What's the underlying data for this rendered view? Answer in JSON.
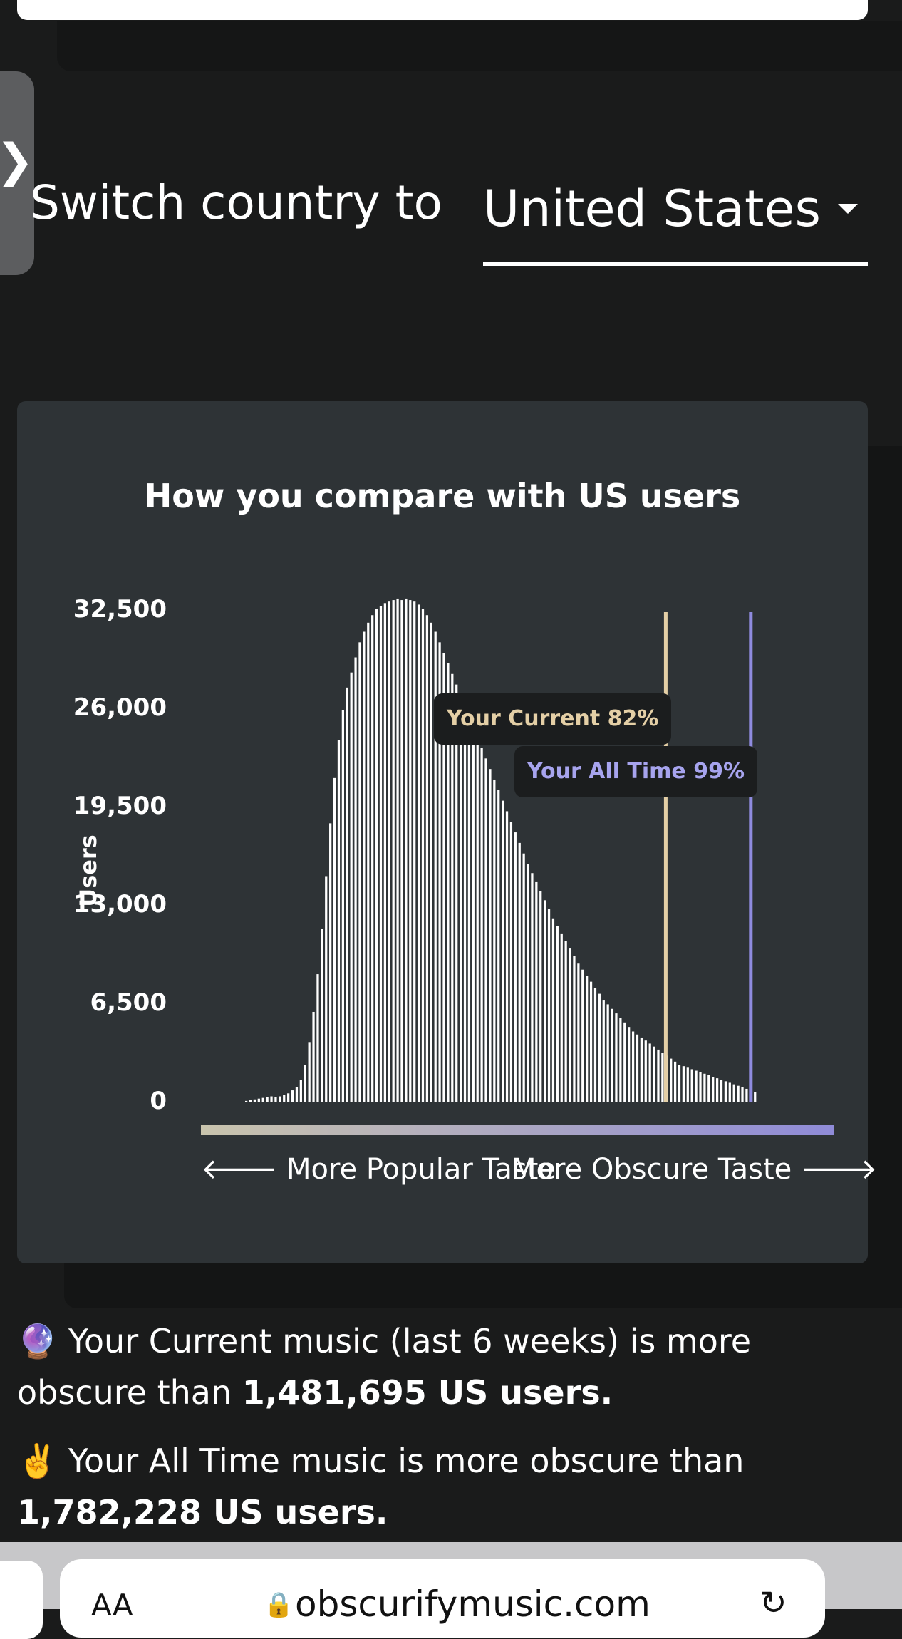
{
  "switch": {
    "label": "Switch country to",
    "country": "United States"
  },
  "side_tab": {
    "glyph": "❯"
  },
  "chart_data": {
    "type": "bar",
    "title": "How you compare with US users",
    "ylabel": "Users",
    "yticks": [
      "32,500",
      "26,000",
      "19,500",
      "13,000",
      "6,500",
      "0"
    ],
    "ylim": [
      0,
      32500
    ],
    "x_left_label": "More Popular Taste",
    "x_right_label": "More Obscure Taste",
    "values": [
      100,
      150,
      200,
      250,
      300,
      350,
      400,
      350,
      400,
      500,
      600,
      800,
      1000,
      1500,
      2500,
      4000,
      6000,
      8500,
      11500,
      15000,
      18500,
      21500,
      24000,
      26000,
      27500,
      28500,
      29500,
      30500,
      31200,
      31800,
      32300,
      32700,
      32900,
      33100,
      33200,
      33300,
      33400,
      33300,
      33400,
      33300,
      33200,
      33000,
      32700,
      32300,
      31800,
      31200,
      30500,
      29800,
      29100,
      28400,
      27700,
      27000,
      26300,
      25600,
      24900,
      24200,
      23500,
      22800,
      22100,
      21400,
      20700,
      20000,
      19300,
      18600,
      17900,
      17200,
      16500,
      15800,
      15200,
      14600,
      14000,
      13400,
      12800,
      12200,
      11700,
      11200,
      10700,
      10200,
      9700,
      9200,
      8800,
      8400,
      8000,
      7600,
      7200,
      6800,
      6500,
      6200,
      5900,
      5600,
      5300,
      5000,
      4700,
      4500,
      4300,
      4100,
      3900,
      3700,
      3500,
      3300,
      3100,
      2900,
      2700,
      2500,
      2400,
      2300,
      2200,
      2100,
      2000,
      1900,
      1800,
      1700,
      1600,
      1500,
      1400,
      1300,
      1200,
      1100,
      1000,
      900,
      800,
      700
    ],
    "markers": [
      {
        "label": "Your Current 82%",
        "percentile": 82,
        "color": "#e4cfa6"
      },
      {
        "label": "Your All Time 99%",
        "percentile": 99,
        "color": "#8f8bdf"
      }
    ]
  },
  "summary": {
    "current_emoji": "🔮",
    "current_prefix": "Your Current music (last 6 weeks) is more obscure than",
    "current_count": "1,481,695 US users.",
    "alltime_emoji": "✌️",
    "alltime_prefix": "Your All Time music is more obscure than",
    "alltime_count": "1,782,228 US users."
  },
  "browser": {
    "aa": "AA",
    "url": "obscurifymusic.com",
    "lock_icon": "lock-icon",
    "reload_icon": "reload-icon"
  }
}
